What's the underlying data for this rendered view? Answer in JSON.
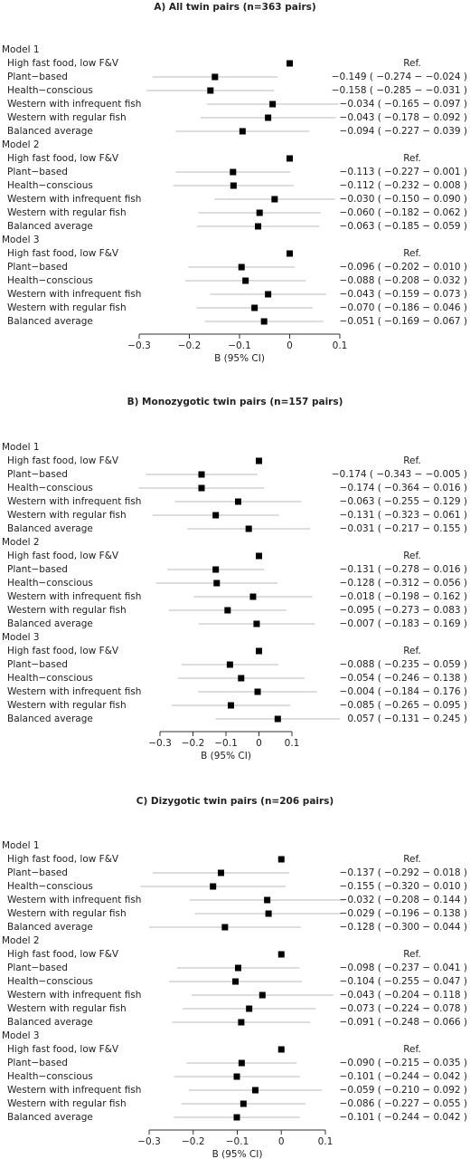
{
  "chart_data": [
    {
      "type": "forest",
      "title": "A) All twin pairs (n=363 pairs)",
      "xlabel": "B (95% CI)",
      "xlim": [
        -0.3,
        0.1
      ],
      "xticks": [
        {
          "value": -0.3,
          "label": "−0.3"
        },
        {
          "value": -0.2,
          "label": "−0.2"
        },
        {
          "value": -0.1,
          "label": "−0.1"
        },
        0,
        0.1
      ],
      "color": "#000000",
      "ci_color": "#bbbbbb",
      "categories": [
        "High fast food, low F&V",
        "Plant−based",
        "Health−conscious",
        "Western with infrequent fish",
        "Western with regular fish",
        "Balanced average"
      ],
      "groups": [
        {
          "name": "Model 1",
          "values": [
            0,
            -0.149,
            -0.158,
            -0.034,
            -0.043,
            -0.094
          ],
          "lower": [
            null,
            -0.274,
            -0.285,
            -0.165,
            -0.178,
            -0.227
          ],
          "upper": [
            null,
            -0.024,
            -0.031,
            0.097,
            0.092,
            0.039
          ],
          "value_labels": [
            "Ref.",
            "−0.149 ( −0.274 − −0.024 )",
            "−0.158 ( −0.285 − −0.031 )",
            "−0.034 ( −0.165 − 0.097 )",
            "−0.043 ( −0.178 − 0.092 )",
            "−0.094 ( −0.227 − 0.039 )"
          ]
        },
        {
          "name": "Model 2",
          "values": [
            0,
            -0.113,
            -0.112,
            -0.03,
            -0.06,
            -0.063
          ],
          "lower": [
            null,
            -0.227,
            -0.232,
            -0.15,
            -0.182,
            -0.185
          ],
          "upper": [
            null,
            0.001,
            0.008,
            0.09,
            0.062,
            0.059
          ],
          "value_labels": [
            "Ref.",
            "−0.113 ( −0.227 − 0.001 )",
            "−0.112 ( −0.232 − 0.008 )",
            "−0.030 ( −0.150 − 0.090 )",
            "−0.060 ( −0.182 − 0.062 )",
            "−0.063 ( −0.185 − 0.059 )"
          ]
        },
        {
          "name": "Model 3",
          "values": [
            0,
            -0.096,
            -0.088,
            -0.043,
            -0.07,
            -0.051
          ],
          "lower": [
            null,
            -0.202,
            -0.208,
            -0.159,
            -0.186,
            -0.169
          ],
          "upper": [
            null,
            0.01,
            0.032,
            0.073,
            0.046,
            0.067
          ],
          "value_labels": [
            "Ref.",
            "−0.096 ( −0.202 − 0.010 )",
            "−0.088 ( −0.208 − 0.032 )",
            "−0.043 ( −0.159 − 0.073 )",
            "−0.070 ( −0.186 − 0.046 )",
            "−0.051 ( −0.169 − 0.067 )"
          ]
        }
      ]
    },
    {
      "type": "forest",
      "title": "B) Monozygotic twin pairs (n=157 pairs)",
      "xlabel": "B (95% CI)",
      "xlim": [
        -0.3,
        0.1
      ],
      "xticks": [
        {
          "value": -0.3,
          "label": "−0.3"
        },
        {
          "value": -0.2,
          "label": "−0.2"
        },
        {
          "value": -0.1,
          "label": "−0.1"
        },
        0,
        0.1
      ],
      "color": "#000000",
      "ci_color": "#bbbbbb",
      "categories": [
        "High fast food, low F&V",
        "Plant−based",
        "Health−conscious",
        "Western with infrequent fish",
        "Western with regular fish",
        "Balanced average"
      ],
      "groups": [
        {
          "name": "Model 1",
          "values": [
            0,
            -0.174,
            -0.174,
            -0.063,
            -0.131,
            -0.031
          ],
          "lower": [
            null,
            -0.343,
            -0.364,
            -0.255,
            -0.323,
            -0.217
          ],
          "upper": [
            null,
            -0.005,
            0.016,
            0.129,
            0.061,
            0.155
          ],
          "value_labels": [
            "Ref.",
            "−0.174 ( −0.343 − −0.005 )",
            "−0.174 ( −0.364 − 0.016 )",
            "−0.063 ( −0.255 − 0.129 )",
            "−0.131 ( −0.323 − 0.061 )",
            "−0.031 ( −0.217 − 0.155 )"
          ]
        },
        {
          "name": "Model 2",
          "values": [
            0,
            -0.131,
            -0.128,
            -0.018,
            -0.095,
            -0.007
          ],
          "lower": [
            null,
            -0.278,
            -0.312,
            -0.198,
            -0.273,
            -0.183
          ],
          "upper": [
            null,
            0.016,
            0.056,
            0.162,
            0.083,
            0.169
          ],
          "value_labels": [
            "Ref.",
            "−0.131 ( −0.278 − 0.016 )",
            "−0.128 ( −0.312 − 0.056 )",
            "−0.018 ( −0.198 − 0.162 )",
            "−0.095 ( −0.273 − 0.083 )",
            "−0.007 ( −0.183 − 0.169 )"
          ]
        },
        {
          "name": "Model 3",
          "values": [
            0,
            -0.088,
            -0.054,
            -0.004,
            -0.085,
            0.057
          ],
          "lower": [
            null,
            -0.235,
            -0.246,
            -0.184,
            -0.265,
            -0.131
          ],
          "upper": [
            null,
            0.059,
            0.138,
            0.176,
            0.095,
            0.245
          ],
          "value_labels": [
            "Ref.",
            "−0.088 ( −0.235 − 0.059 )",
            "−0.054 ( −0.246 − 0.138 )",
            "−0.004 ( −0.184 − 0.176 )",
            "−0.085 ( −0.265 − 0.095 )",
            "0.057 ( −0.131 − 0.245 )"
          ]
        }
      ]
    },
    {
      "type": "forest",
      "title": "C) Dizygotic twin pairs (n=206 pairs)",
      "xlabel": "B (95% CI)",
      "xlim": [
        -0.3,
        0.1
      ],
      "xticks": [
        {
          "value": -0.3,
          "label": "−0.3"
        },
        {
          "value": -0.2,
          "label": "−0.2"
        },
        {
          "value": -0.1,
          "label": "−0.1"
        },
        0,
        0.1
      ],
      "color": "#000000",
      "ci_color": "#bbbbbb",
      "categories": [
        "High fast food, low F&V",
        "Plant−based",
        "Health−conscious",
        "Western with infrequent fish",
        "Western with regular fish",
        "Balanced average"
      ],
      "groups": [
        {
          "name": "Model 1",
          "values": [
            0,
            -0.137,
            -0.155,
            -0.032,
            -0.029,
            -0.128
          ],
          "lower": [
            null,
            -0.292,
            -0.32,
            -0.208,
            -0.196,
            -0.3
          ],
          "upper": [
            null,
            0.018,
            0.01,
            0.144,
            0.138,
            0.044
          ],
          "value_labels": [
            "Ref.",
            "−0.137 ( −0.292 − 0.018 )",
            "−0.155 ( −0.320 − 0.010 )",
            "−0.032 ( −0.208 − 0.144 )",
            "−0.029 ( −0.196 − 0.138 )",
            "−0.128 ( −0.300 − 0.044 )"
          ]
        },
        {
          "name": "Model 2",
          "values": [
            0,
            -0.098,
            -0.104,
            -0.043,
            -0.073,
            -0.091
          ],
          "lower": [
            null,
            -0.237,
            -0.255,
            -0.204,
            -0.224,
            -0.248
          ],
          "upper": [
            null,
            0.041,
            0.047,
            0.118,
            0.078,
            0.066
          ],
          "value_labels": [
            "Ref.",
            "−0.098 ( −0.237 − 0.041 )",
            "−0.104 ( −0.255 − 0.047 )",
            "−0.043 ( −0.204 − 0.118 )",
            "−0.073 ( −0.224 − 0.078 )",
            "−0.091 ( −0.248 − 0.066 )"
          ]
        },
        {
          "name": "Model 3",
          "values": [
            0,
            -0.09,
            -0.101,
            -0.059,
            -0.086,
            -0.101
          ],
          "lower": [
            null,
            -0.215,
            -0.244,
            -0.21,
            -0.227,
            -0.244
          ],
          "upper": [
            null,
            0.035,
            0.042,
            0.092,
            0.055,
            0.042
          ],
          "value_labels": [
            "Ref.",
            "−0.090 ( −0.215 − 0.035 )",
            "−0.101 ( −0.244 − 0.042 )",
            "−0.059 ( −0.210 − 0.092 )",
            "−0.086 ( −0.227 − 0.055 )",
            "−0.101 ( −0.244 − 0.042 )"
          ]
        }
      ]
    }
  ]
}
